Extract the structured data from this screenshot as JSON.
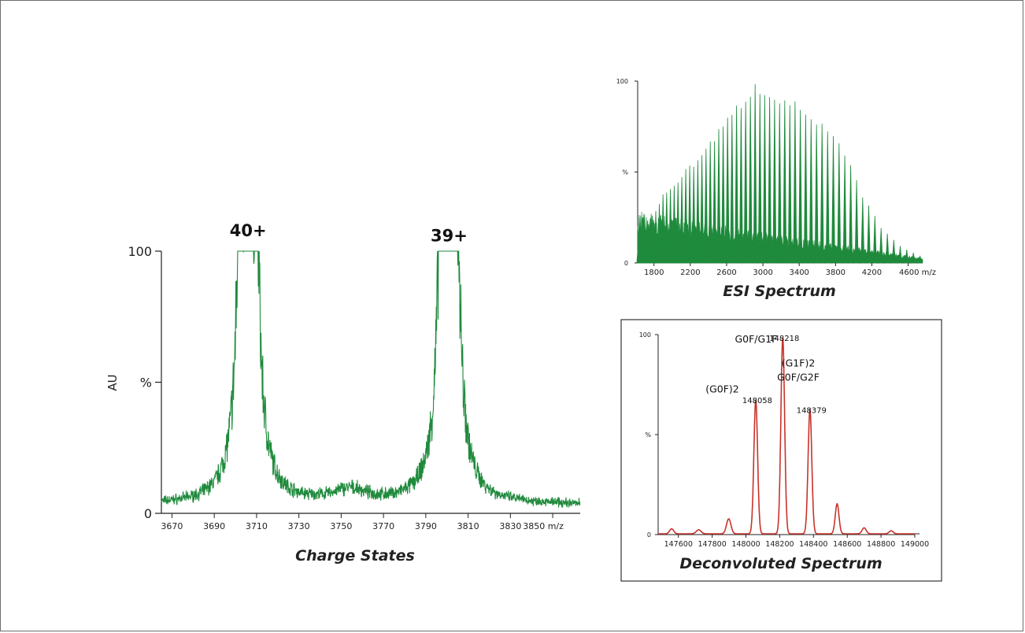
{
  "colors": {
    "green": "#1f8a3c",
    "red": "#c8332b",
    "axis": "#222222",
    "frame": "#6d6d6d"
  },
  "chart_data": [
    {
      "type": "line",
      "title": "Charge States",
      "xlabel": "m/z",
      "ylabel": "%",
      "extra_ylabel": "AU",
      "xlim": [
        3665,
        3863
      ],
      "ylim": [
        0,
        100
      ],
      "x_ticks": [
        "3670",
        "3690",
        "3710",
        "3730",
        "3750",
        "3770",
        "3790",
        "3810",
        "3830",
        "3850 m/z"
      ],
      "y_ticks": [
        "0",
        "%",
        "100"
      ],
      "annotations": [
        {
          "label": "40+",
          "x": 3706,
          "y": 100
        },
        {
          "label": "39+",
          "x": 3801,
          "y": 98
        }
      ],
      "peaks": [
        {
          "center": 3706,
          "height": 100,
          "width": 1.2
        },
        {
          "center": 3702,
          "height": 78,
          "width": 1.3
        },
        {
          "center": 3710,
          "height": 74,
          "width": 1.3
        },
        {
          "center": 3704,
          "height": 52,
          "width": 4.5
        },
        {
          "center": 3708,
          "height": 48,
          "width": 4.5
        },
        {
          "center": 3801,
          "height": 98,
          "width": 1.2
        },
        {
          "center": 3797,
          "height": 84,
          "width": 1.3
        },
        {
          "center": 3805,
          "height": 66,
          "width": 1.3
        },
        {
          "center": 3799,
          "height": 52,
          "width": 4.5
        },
        {
          "center": 3803,
          "height": 46,
          "width": 4.5
        },
        {
          "center": 3754,
          "height": 5,
          "width": 10
        }
      ],
      "baseline": 5
    },
    {
      "type": "bar",
      "title": "ESI Spectrum",
      "xlabel": "m/z",
      "ylabel": "%",
      "xlim": [
        1620,
        4760
      ],
      "ylim": [
        0,
        100
      ],
      "x_ticks": [
        "1800",
        "2200",
        "2600",
        "3000",
        "3400",
        "3800",
        "4200",
        "4600 m/z"
      ],
      "y_ticks": [
        "0",
        "%",
        "100"
      ],
      "peak_spacing_mz": 37,
      "envelope": [
        [
          1630,
          12
        ],
        [
          1900,
          38
        ],
        [
          2300,
          60
        ],
        [
          2600,
          80
        ],
        [
          2900,
          100
        ],
        [
          3100,
          96
        ],
        [
          3400,
          88
        ],
        [
          3700,
          76
        ],
        [
          3900,
          62
        ],
        [
          4100,
          38
        ],
        [
          4300,
          20
        ],
        [
          4500,
          10
        ],
        [
          4720,
          4
        ]
      ]
    },
    {
      "type": "line",
      "title": "Deconvoluted Spectrum",
      "xlabel": "",
      "ylabel": "%",
      "xlim": [
        147480,
        149000
      ],
      "ylim": [
        0,
        100
      ],
      "x_ticks": [
        "147600",
        "147800",
        "148000",
        "148200",
        "148400",
        "148600",
        "148800",
        "149000"
      ],
      "y_ticks": [
        "0",
        "%",
        "100"
      ],
      "peaks": [
        {
          "mass": 147560,
          "height": 2.5,
          "width": 12
        },
        {
          "mass": 147720,
          "height": 2,
          "width": 14
        },
        {
          "mass": 147898,
          "height": 7.5,
          "width": 13
        },
        {
          "mass": 148058,
          "height": 67,
          "width": 11
        },
        {
          "mass": 148218,
          "height": 98,
          "width": 11
        },
        {
          "mass": 148379,
          "height": 62,
          "width": 11
        },
        {
          "mass": 148540,
          "height": 15,
          "width": 11
        },
        {
          "mass": 148700,
          "height": 3,
          "width": 12
        },
        {
          "mass": 148860,
          "height": 1.5,
          "width": 12
        }
      ],
      "data_labels": [
        {
          "text": "148058",
          "x": 148058,
          "y": 67
        },
        {
          "text": "148218",
          "x": 148218,
          "y": 98
        },
        {
          "text": "148379",
          "x": 148379,
          "y": 62
        }
      ],
      "glycoform_labels": [
        {
          "text": "G0F/G1F",
          "x": 148060,
          "y": 96
        },
        {
          "text": "(G0F)2",
          "x": 147860,
          "y": 71
        },
        {
          "text": "(G1F)2",
          "x": 148310,
          "y": 84
        },
        {
          "text": "G0F/G2F",
          "x": 148310,
          "y": 77
        }
      ]
    }
  ]
}
